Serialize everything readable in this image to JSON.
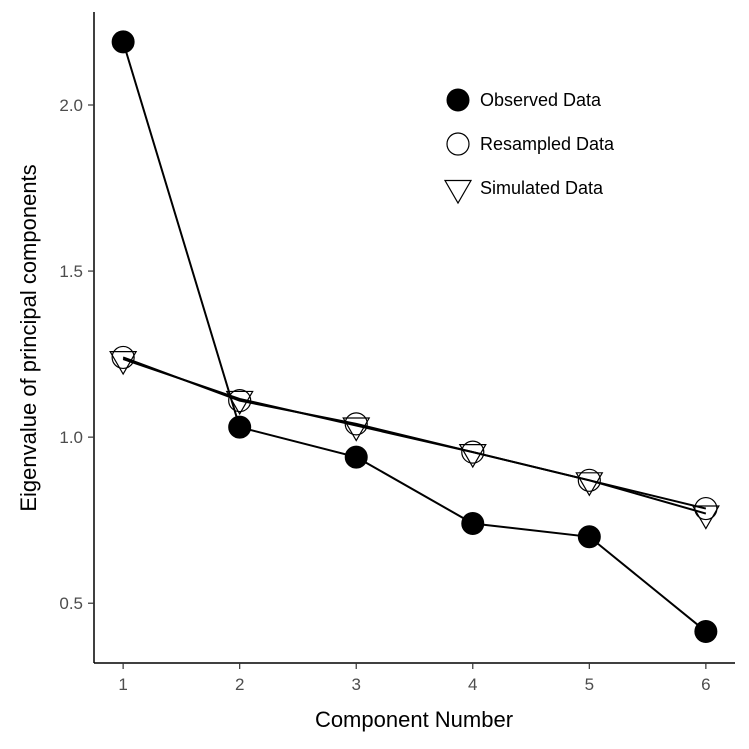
{
  "chart_data": {
    "type": "line",
    "xlabel": "Component Number",
    "ylabel": "Eigenvalue of principal components",
    "x": [
      1,
      2,
      3,
      4,
      5,
      6
    ],
    "xticks": [
      1,
      2,
      3,
      4,
      5,
      6
    ],
    "yticks": [
      0.5,
      1.0,
      1.5,
      2.0
    ],
    "ytick_labels": [
      "0.5",
      "1.0",
      "1.5",
      "2.0"
    ],
    "xlim": [
      0.75,
      6.25
    ],
    "ylim": [
      0.32,
      2.28
    ],
    "grid": false,
    "legend_position": "top-right",
    "series": [
      {
        "name": "Observed Data",
        "marker": "filled-circle",
        "values": [
          2.19,
          1.03,
          0.94,
          0.74,
          0.7,
          0.415
        ]
      },
      {
        "name": "Resampled Data",
        "marker": "open-circle",
        "values": [
          1.24,
          1.11,
          1.04,
          0.955,
          0.87,
          0.785
        ]
      },
      {
        "name": "Simulated Data",
        "marker": "open-triangle-down",
        "values": [
          1.235,
          1.115,
          1.035,
          0.955,
          0.87,
          0.77
        ]
      }
    ]
  }
}
